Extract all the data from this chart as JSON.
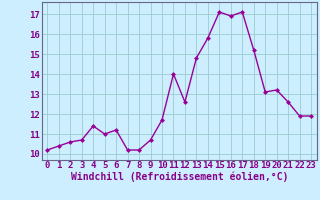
{
  "x": [
    0,
    1,
    2,
    3,
    4,
    5,
    6,
    7,
    8,
    9,
    10,
    11,
    12,
    13,
    14,
    15,
    16,
    17,
    18,
    19,
    20,
    21,
    22,
    23
  ],
  "y": [
    10.2,
    10.4,
    10.6,
    10.7,
    11.4,
    11.0,
    11.2,
    10.2,
    10.2,
    10.7,
    11.7,
    14.0,
    12.6,
    14.8,
    15.8,
    17.1,
    16.9,
    17.1,
    15.2,
    13.1,
    13.2,
    12.6,
    11.9,
    11.9
  ],
  "line_color": "#990099",
  "marker": "D",
  "marker_size": 2,
  "linewidth": 1.0,
  "bg_color": "#cceeff",
  "grid_color": "#99cccc",
  "xlabel": "Windchill (Refroidissement éolien,°C)",
  "xlabel_fontsize": 7,
  "yticks": [
    10,
    11,
    12,
    13,
    14,
    15,
    16,
    17
  ],
  "xticks": [
    0,
    1,
    2,
    3,
    4,
    5,
    6,
    7,
    8,
    9,
    10,
    11,
    12,
    13,
    14,
    15,
    16,
    17,
    18,
    19,
    20,
    21,
    22,
    23
  ],
  "ylim": [
    9.7,
    17.6
  ],
  "xlim": [
    -0.5,
    23.5
  ],
  "tick_fontsize": 6.5,
  "tick_color": "#880088",
  "label_color": "#880088"
}
